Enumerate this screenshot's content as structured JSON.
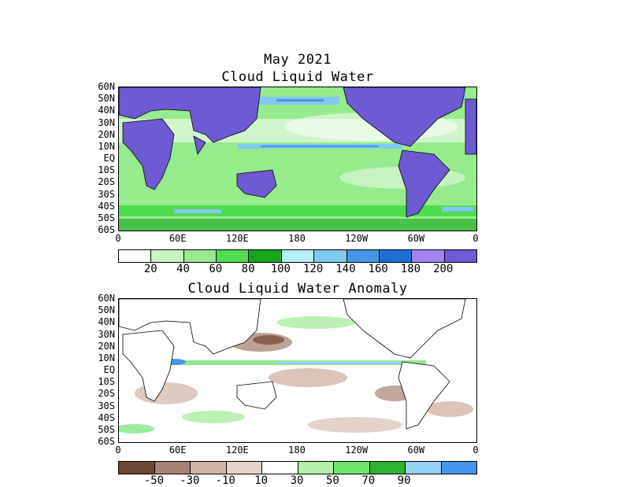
{
  "title": "May 2021",
  "panel1": {
    "title": "Cloud Liquid Water",
    "lat_labels": [
      "60N",
      "50N",
      "40N",
      "30N",
      "20N",
      "10N",
      "EQ",
      "10S",
      "20S",
      "30S",
      "40S",
      "50S",
      "60S"
    ],
    "lon_labels": [
      "0",
      "60E",
      "120E",
      "180",
      "120W",
      "60W",
      "0"
    ],
    "colorbar": {
      "colors": [
        "#ffffff",
        "#c8f5c0",
        "#96ec8c",
        "#50dc50",
        "#17a51e",
        "#b4f0fa",
        "#82c8f0",
        "#4696e6",
        "#1e6ed2",
        "#a082f0",
        "#6e5ad2"
      ],
      "labels": [
        "20",
        "40",
        "60",
        "80",
        "100",
        "120",
        "140",
        "160",
        "180",
        "200"
      ]
    }
  },
  "panel2": {
    "title": "Cloud Liquid Water Anomaly",
    "lat_labels": [
      "60N",
      "50N",
      "40N",
      "30N",
      "20N",
      "10N",
      "EQ",
      "10S",
      "20S",
      "30S",
      "40S",
      "50S",
      "60S"
    ],
    "lon_labels": [
      "0",
      "60E",
      "120E",
      "180",
      "120W",
      "60W",
      "0"
    ],
    "colorbar": {
      "colors": [
        "#6e4632",
        "#aa8273",
        "#d2b4a5",
        "#e6d2c8",
        "#ffffff",
        "#b4f0aa",
        "#6ee66e",
        "#2db432",
        "#96d2fa",
        "#4696f0"
      ],
      "labels": [
        "-50",
        "-30",
        "-10",
        "10",
        "30",
        "50",
        "70",
        "90"
      ]
    }
  },
  "colors": {
    "land": "#6e5ad2",
    "ocean_green": "#96ec8c",
    "brown": "#aa8273"
  }
}
